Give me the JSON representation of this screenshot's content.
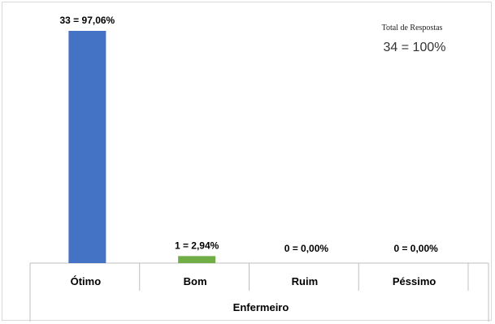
{
  "chart_data": {
    "type": "bar",
    "categories": [
      "Ótimo",
      "Bom",
      "Ruim",
      "Péssimo"
    ],
    "values": [
      33,
      1,
      0,
      0
    ],
    "data_labels": [
      "33 = 97,06%",
      "1 = 2,94%",
      "0 = 0,00%",
      "0 = 0,00%"
    ],
    "bar_colors": [
      "#4472C4",
      "#70AD47",
      "#A5A5A5",
      "#FFC000"
    ],
    "xlabel": "Enfermeiro",
    "ylabel": "",
    "ylim": [
      0,
      33
    ],
    "grid": false,
    "legend": "none",
    "total_box": {
      "title": "Total de Respostas",
      "value": "34 = 100%"
    }
  }
}
